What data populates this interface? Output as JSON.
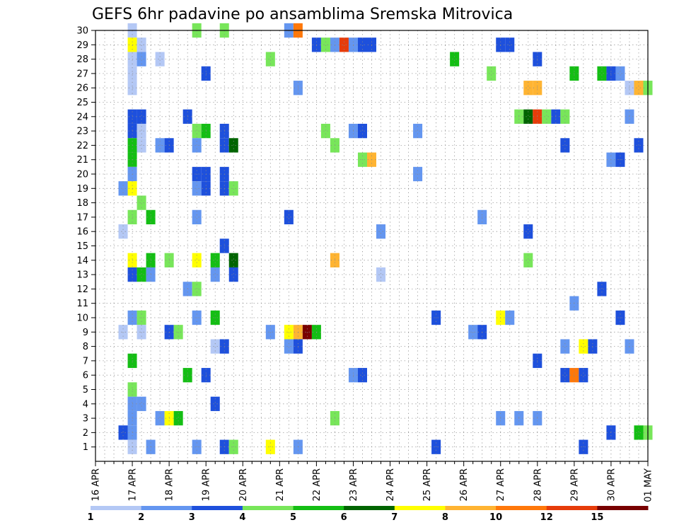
{
  "chart_data": {
    "type": "heatmap",
    "title": "GEFS 6hr padavine po ansamblima Sremska Mitrovica",
    "xlabel": "",
    "ylabel": "",
    "x_start": "16 APR",
    "x_step_hours": 6,
    "x_ticks": [
      "16 APR",
      "17 APR",
      "18 APR",
      "19 APR",
      "20 APR",
      "21 APR",
      "22 APR",
      "23 APR",
      "24 APR",
      "25 APR",
      "26 APR",
      "27 APR",
      "28 APR",
      "29 APR",
      "30 APR",
      "01 MAY"
    ],
    "y_ticks": [
      "1",
      "2",
      "3",
      "4",
      "5",
      "6",
      "7",
      "8",
      "9",
      "10",
      "11",
      "12",
      "13",
      "14",
      "15",
      "16",
      "17",
      "18",
      "19",
      "20",
      "21",
      "22",
      "23",
      "24",
      "25",
      "26",
      "27",
      "28",
      "29",
      "30"
    ],
    "ylim": [
      0,
      30
    ],
    "grid": true,
    "colorbar": {
      "levels": [
        "1",
        "2",
        "3",
        "4",
        "5",
        "6",
        "7",
        "8",
        "10",
        "12",
        "15",
        "20"
      ],
      "colors": [
        "#b4c8f5",
        "#6496f0",
        "#1e50dc",
        "#78e65a",
        "#14be14",
        "#006400",
        "#ffff00",
        "#ffb432",
        "#ff780a",
        "#e63c0a",
        "#780000"
      ]
    },
    "cells": [
      {
        "x": "17 APR 00Z",
        "m": 30,
        "v": 1.5
      },
      {
        "x": "17 APR 00Z",
        "m": 29,
        "v": 7.5
      },
      {
        "x": "17 APR 00Z",
        "m": 28,
        "v": 1.5
      },
      {
        "x": "17 APR 00Z",
        "m": 27,
        "v": 1.5
      },
      {
        "x": "17 APR 00Z",
        "m": 26,
        "v": 1.5
      },
      {
        "x": "17 APR 00Z",
        "m": 24,
        "v": 3.5
      },
      {
        "x": "17 APR 00Z",
        "m": 23,
        "v": 3.5
      },
      {
        "x": "17 APR 00Z",
        "m": 22,
        "v": 5.5
      },
      {
        "x": "17 APR 00Z",
        "m": 21,
        "v": 5.5
      },
      {
        "x": "17 APR 00Z",
        "m": 20,
        "v": 2.5
      },
      {
        "x": "17 APR 00Z",
        "m": 19,
        "v": 7.5
      },
      {
        "x": "17 APR 00Z",
        "m": 17,
        "v": 4.5
      },
      {
        "x": "17 APR 00Z",
        "m": 14,
        "v": 7.5
      },
      {
        "x": "17 APR 00Z",
        "m": 13,
        "v": 3.5
      },
      {
        "x": "17 APR 00Z",
        "m": 10,
        "v": 2.5
      },
      {
        "x": "17 APR 00Z",
        "m": 7,
        "v": 5.5
      },
      {
        "x": "17 APR 00Z",
        "m": 5,
        "v": 4.5
      },
      {
        "x": "17 APR 00Z",
        "m": 4,
        "v": 2.5
      },
      {
        "x": "17 APR 00Z",
        "m": 3,
        "v": 2.5
      },
      {
        "x": "17 APR 00Z",
        "m": 2,
        "v": 2.5
      },
      {
        "x": "17 APR 00Z",
        "m": 1,
        "v": 1.5
      },
      {
        "x": "16 APR 18Z",
        "m": 19,
        "v": 2.5
      },
      {
        "x": "16 APR 18Z",
        "m": 2,
        "v": 3.5
      },
      {
        "x": "16 APR 18Z",
        "m": 9,
        "v": 1.5
      },
      {
        "x": "16 APR 18Z",
        "m": 16,
        "v": 1.5
      },
      {
        "x": "17 APR 06Z",
        "m": 29,
        "v": 1.5
      },
      {
        "x": "17 APR 06Z",
        "m": 28,
        "v": 2.5
      },
      {
        "x": "17 APR 06Z",
        "m": 24,
        "v": 3.5
      },
      {
        "x": "17 APR 06Z",
        "m": 23,
        "v": 1.5
      },
      {
        "x": "17 APR 06Z",
        "m": 22,
        "v": 1.5
      },
      {
        "x": "17 APR 06Z",
        "m": 18,
        "v": 4.5
      },
      {
        "x": "17 APR 06Z",
        "m": 13,
        "v": 5.5
      },
      {
        "x": "17 APR 06Z",
        "m": 10,
        "v": 4.5
      },
      {
        "x": "17 APR 06Z",
        "m": 9,
        "v": 1.5
      },
      {
        "x": "17 APR 06Z",
        "m": 4,
        "v": 2.5
      },
      {
        "x": "17 APR 12Z",
        "m": 17,
        "v": 5.5
      },
      {
        "x": "17 APR 12Z",
        "m": 14,
        "v": 5.5
      },
      {
        "x": "17 APR 12Z",
        "m": 13,
        "v": 2.5
      },
      {
        "x": "17 APR 12Z",
        "m": 1,
        "v": 2.5
      },
      {
        "x": "17 APR 18Z",
        "m": 22,
        "v": 2.5
      },
      {
        "x": "17 APR 18Z",
        "m": 3,
        "v": 2.5
      },
      {
        "x": "17 APR 18Z",
        "m": 28,
        "v": 1.5
      },
      {
        "x": "18 APR 00Z",
        "m": 22,
        "v": 3.5
      },
      {
        "x": "18 APR 00Z",
        "m": 14,
        "v": 4.5
      },
      {
        "x": "18 APR 00Z",
        "m": 9,
        "v": 3.5
      },
      {
        "x": "18 APR 00Z",
        "m": 3,
        "v": 7.5
      },
      {
        "x": "18 APR 06Z",
        "m": 9,
        "v": 4.5
      },
      {
        "x": "18 APR 06Z",
        "m": 3,
        "v": 5.5
      },
      {
        "x": "18 APR 12Z",
        "m": 24,
        "v": 3.5
      },
      {
        "x": "18 APR 12Z",
        "m": 6,
        "v": 5.5
      },
      {
        "x": "18 APR 12Z",
        "m": 12,
        "v": 2.5
      },
      {
        "x": "18 APR 18Z",
        "m": 30,
        "v": 4.5
      },
      {
        "x": "18 APR 18Z",
        "m": 23,
        "v": 4.5
      },
      {
        "x": "18 APR 18Z",
        "m": 22,
        "v": 2.5
      },
      {
        "x": "18 APR 18Z",
        "m": 20,
        "v": 3.5
      },
      {
        "x": "18 APR 18Z",
        "m": 19,
        "v": 2.5
      },
      {
        "x": "18 APR 18Z",
        "m": 17,
        "v": 2.5
      },
      {
        "x": "18 APR 18Z",
        "m": 14,
        "v": 7.5
      },
      {
        "x": "18 APR 18Z",
        "m": 12,
        "v": 4.5
      },
      {
        "x": "18 APR 18Z",
        "m": 10,
        "v": 2.5
      },
      {
        "x": "18 APR 18Z",
        "m": 1,
        "v": 2.5
      },
      {
        "x": "19 APR 00Z",
        "m": 27,
        "v": 3.5
      },
      {
        "x": "19 APR 00Z",
        "m": 23,
        "v": 5.5
      },
      {
        "x": "19 APR 00Z",
        "m": 20,
        "v": 3.5
      },
      {
        "x": "19 APR 00Z",
        "m": 19,
        "v": 3.5
      },
      {
        "x": "19 APR 00Z",
        "m": 6,
        "v": 3.5
      },
      {
        "x": "19 APR 06Z",
        "m": 4,
        "v": 3.5
      },
      {
        "x": "19 APR 06Z",
        "m": 13,
        "v": 2.5
      },
      {
        "x": "19 APR 06Z",
        "m": 14,
        "v": 5.5
      },
      {
        "x": "19 APR 06Z",
        "m": 10,
        "v": 5.5
      },
      {
        "x": "19 APR 06Z",
        "m": 8,
        "v": 1.5
      },
      {
        "x": "19 APR 12Z",
        "m": 30,
        "v": 4.5
      },
      {
        "x": "19 APR 12Z",
        "m": 23,
        "v": 3.5
      },
      {
        "x": "19 APR 12Z",
        "m": 22,
        "v": 3.5
      },
      {
        "x": "19 APR 12Z",
        "m": 20,
        "v": 3.5
      },
      {
        "x": "19 APR 12Z",
        "m": 19,
        "v": 3.5
      },
      {
        "x": "19 APR 12Z",
        "m": 15,
        "v": 3.5
      },
      {
        "x": "19 APR 12Z",
        "m": 8,
        "v": 3.5
      },
      {
        "x": "19 APR 12Z",
        "m": 1,
        "v": 3.5
      },
      {
        "x": "19 APR 18Z",
        "m": 22,
        "v": 6.5
      },
      {
        "x": "19 APR 18Z",
        "m": 19,
        "v": 4.5
      },
      {
        "x": "19 APR 18Z",
        "m": 14,
        "v": 6.5
      },
      {
        "x": "19 APR 18Z",
        "m": 13,
        "v": 3.5
      },
      {
        "x": "19 APR 18Z",
        "m": 1,
        "v": 4.5
      },
      {
        "x": "20 APR 18Z",
        "m": 28,
        "v": 4.5
      },
      {
        "x": "20 APR 18Z",
        "m": 9,
        "v": 2.5
      },
      {
        "x": "20 APR 18Z",
        "m": 1,
        "v": 7.5
      },
      {
        "x": "21 APR 06Z",
        "m": 30,
        "v": 2.5
      },
      {
        "x": "21 APR 06Z",
        "m": 17,
        "v": 3.5
      },
      {
        "x": "21 APR 06Z",
        "m": 9,
        "v": 7.5
      },
      {
        "x": "21 APR 06Z",
        "m": 8,
        "v": 2.5
      },
      {
        "x": "21 APR 12Z",
        "m": 30,
        "v": 10.5
      },
      {
        "x": "21 APR 12Z",
        "m": 26,
        "v": 2.5
      },
      {
        "x": "21 APR 12Z",
        "m": 9,
        "v": 8.5
      },
      {
        "x": "21 APR 12Z",
        "m": 8,
        "v": 3.5
      },
      {
        "x": "21 APR 12Z",
        "m": 1,
        "v": 2.5
      },
      {
        "x": "21 APR 18Z",
        "m": 9,
        "v": 21
      },
      {
        "x": "22 APR 00Z",
        "m": 29,
        "v": 3.5
      },
      {
        "x": "22 APR 00Z",
        "m": 9,
        "v": 5.5
      },
      {
        "x": "22 APR 06Z",
        "m": 29,
        "v": 4.5
      },
      {
        "x": "22 APR 06Z",
        "m": 23,
        "v": 4.5
      },
      {
        "x": "22 APR 12Z",
        "m": 29,
        "v": 2.5
      },
      {
        "x": "22 APR 12Z",
        "m": 22,
        "v": 4.5
      },
      {
        "x": "22 APR 12Z",
        "m": 14,
        "v": 8.5
      },
      {
        "x": "22 APR 12Z",
        "m": 3,
        "v": 4.5
      },
      {
        "x": "22 APR 18Z",
        "m": 29,
        "v": 13
      },
      {
        "x": "23 APR 00Z",
        "m": 29,
        "v": 2.5
      },
      {
        "x": "23 APR 00Z",
        "m": 23,
        "v": 2.5
      },
      {
        "x": "23 APR 00Z",
        "m": 6,
        "v": 2.5
      },
      {
        "x": "23 APR 06Z",
        "m": 29,
        "v": 3.5
      },
      {
        "x": "23 APR 06Z",
        "m": 23,
        "v": 3.5
      },
      {
        "x": "23 APR 06Z",
        "m": 21,
        "v": 4.5
      },
      {
        "x": "23 APR 06Z",
        "m": 6,
        "v": 3.5
      },
      {
        "x": "23 APR 12Z",
        "m": 29,
        "v": 3.5
      },
      {
        "x": "23 APR 12Z",
        "m": 21,
        "v": 8.5
      },
      {
        "x": "23 APR 18Z",
        "m": 16,
        "v": 2.5
      },
      {
        "x": "23 APR 18Z",
        "m": 13,
        "v": 1.5
      },
      {
        "x": "24 APR 18Z",
        "m": 20,
        "v": 2.5
      },
      {
        "x": "24 APR 18Z",
        "m": 23,
        "v": 2.5
      },
      {
        "x": "25 APR 06Z",
        "m": 10,
        "v": 3.5
      },
      {
        "x": "25 APR 06Z",
        "m": 1,
        "v": 3.5
      },
      {
        "x": "25 APR 18Z",
        "m": 28,
        "v": 5.5
      },
      {
        "x": "26 APR 06Z",
        "m": 9,
        "v": 2.5
      },
      {
        "x": "26 APR 12Z",
        "m": 9,
        "v": 3.5
      },
      {
        "x": "26 APR 12Z",
        "m": 17,
        "v": 2.5
      },
      {
        "x": "26 APR 18Z",
        "m": 27,
        "v": 4.5
      },
      {
        "x": "27 APR 00Z",
        "m": 29,
        "v": 3.5
      },
      {
        "x": "27 APR 00Z",
        "m": 10,
        "v": 7.5
      },
      {
        "x": "27 APR 00Z",
        "m": 3,
        "v": 2.5
      },
      {
        "x": "27 APR 06Z",
        "m": 29,
        "v": 3.5
      },
      {
        "x": "27 APR 06Z",
        "m": 10,
        "v": 2.5
      },
      {
        "x": "27 APR 12Z",
        "m": 24,
        "v": 4.5
      },
      {
        "x": "27 APR 12Z",
        "m": 3,
        "v": 2.5
      },
      {
        "x": "27 APR 18Z",
        "m": 26,
        "v": 8.5
      },
      {
        "x": "27 APR 18Z",
        "m": 24,
        "v": 6.5
      },
      {
        "x": "27 APR 18Z",
        "m": 16,
        "v": 3.5
      },
      {
        "x": "27 APR 18Z",
        "m": 14,
        "v": 4.5
      },
      {
        "x": "28 APR 00Z",
        "m": 26,
        "v": 8.5
      },
      {
        "x": "28 APR 00Z",
        "m": 28,
        "v": 3.5
      },
      {
        "x": "28 APR 00Z",
        "m": 24,
        "v": 13
      },
      {
        "x": "28 APR 00Z",
        "m": 7,
        "v": 3.5
      },
      {
        "x": "28 APR 00Z",
        "m": 3,
        "v": 2.5
      },
      {
        "x": "28 APR 06Z",
        "m": 24,
        "v": 4.5
      },
      {
        "x": "28 APR 12Z",
        "m": 24,
        "v": 3.5
      },
      {
        "x": "28 APR 18Z",
        "m": 24,
        "v": 4.5
      },
      {
        "x": "28 APR 18Z",
        "m": 22,
        "v": 3.5
      },
      {
        "x": "28 APR 18Z",
        "m": 6,
        "v": 3.5
      },
      {
        "x": "28 APR 18Z",
        "m": 8,
        "v": 2.5
      },
      {
        "x": "29 APR 00Z",
        "m": 27,
        "v": 5.5
      },
      {
        "x": "29 APR 00Z",
        "m": 11,
        "v": 2.5
      },
      {
        "x": "29 APR 00Z",
        "m": 6,
        "v": 11
      },
      {
        "x": "29 APR 06Z",
        "m": 8,
        "v": 7.5
      },
      {
        "x": "29 APR 06Z",
        "m": 6,
        "v": 3.5
      },
      {
        "x": "29 APR 06Z",
        "m": 1,
        "v": 3.5
      },
      {
        "x": "29 APR 12Z",
        "m": 8,
        "v": 3.5
      },
      {
        "x": "29 APR 18Z",
        "m": 27,
        "v": 5.5
      },
      {
        "x": "29 APR 18Z",
        "m": 12,
        "v": 3.5
      },
      {
        "x": "30 APR 00Z",
        "m": 27,
        "v": 3.5
      },
      {
        "x": "30 APR 00Z",
        "m": 21,
        "v": 2.5
      },
      {
        "x": "30 APR 00Z",
        "m": 2,
        "v": 3.5
      },
      {
        "x": "30 APR 06Z",
        "m": 27,
        "v": 2.5
      },
      {
        "x": "30 APR 06Z",
        "m": 21,
        "v": 3.5
      },
      {
        "x": "30 APR 06Z",
        "m": 10,
        "v": 3.5
      },
      {
        "x": "30 APR 12Z",
        "m": 24,
        "v": 2.5
      },
      {
        "x": "30 APR 12Z",
        "m": 26,
        "v": 1.5
      },
      {
        "x": "30 APR 12Z",
        "m": 8,
        "v": 2.5
      },
      {
        "x": "30 APR 18Z",
        "m": 26,
        "v": 8.5
      },
      {
        "x": "30 APR 18Z",
        "m": 22,
        "v": 3.5
      },
      {
        "x": "30 APR 18Z",
        "m": 2,
        "v": 5.5
      },
      {
        "x": "01 MAY 00Z",
        "m": 26,
        "v": 4.5
      },
      {
        "x": "01 MAY 00Z",
        "m": 2,
        "v": 4.5
      }
    ]
  }
}
